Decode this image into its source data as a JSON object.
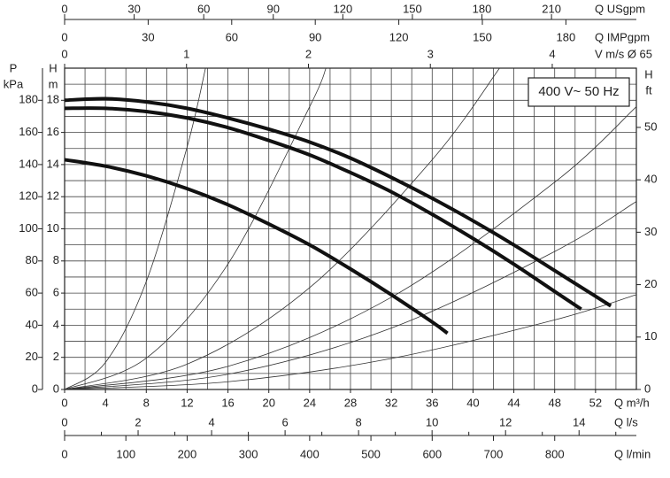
{
  "chart_data": {
    "type": "line",
    "annotation": "400 V~ 50 Hz",
    "xlabel": "Q m³/h",
    "ylabel": [
      "H",
      "m"
    ],
    "xlim": [
      0,
      56
    ],
    "xticks": [
      0,
      4,
      8,
      12,
      16,
      20,
      24,
      28,
      32,
      36,
      40,
      44,
      48,
      52
    ],
    "ylim": [
      0,
      20
    ],
    "yticks": [
      0,
      2,
      4,
      6,
      8,
      10,
      12,
      14,
      16,
      18
    ],
    "grid": true,
    "xgrid": [
      0,
      2,
      4,
      6,
      8,
      10,
      12,
      14,
      16,
      18,
      20,
      22,
      24,
      26,
      28,
      30,
      32,
      34,
      36,
      38,
      40,
      42,
      44,
      46,
      48,
      50,
      52,
      54,
      56
    ],
    "ygrid": [
      0,
      1,
      2,
      3,
      4,
      5,
      6,
      7,
      8,
      9,
      10,
      11,
      12,
      13,
      14,
      15,
      16,
      17,
      18,
      19,
      20
    ],
    "axes": [
      {
        "position": "left",
        "label": [
          "P",
          "kPa"
        ],
        "lim": [
          0,
          200
        ],
        "ticks": [
          0,
          20,
          40,
          60,
          80,
          100,
          120,
          140,
          160,
          180
        ]
      },
      {
        "position": "right",
        "label": [
          "H",
          "ft"
        ],
        "lim": [
          0,
          61.3
        ],
        "ticks": [
          0,
          10,
          20,
          30,
          40,
          50
        ]
      },
      {
        "position": "top",
        "label": [
          "Q USgpm"
        ],
        "lim": [
          0,
          246.6
        ],
        "ticks": [
          0,
          30,
          60,
          90,
          120,
          150,
          180,
          210
        ]
      },
      {
        "position": "top",
        "label": [
          "Q IMPgpm"
        ],
        "lim": [
          0,
          205.3
        ],
        "ticks": [
          0,
          30,
          60,
          90,
          120,
          150,
          180
        ]
      },
      {
        "position": "top",
        "label": [
          "V m/s Ø 65"
        ],
        "lim": [
          0,
          4.69
        ],
        "ticks": [
          0,
          1,
          2,
          3,
          4
        ]
      },
      {
        "position": "bottom",
        "label": [
          "Q l/s"
        ],
        "lim": [
          0,
          15.56
        ],
        "ticks": [
          0,
          2,
          4,
          6,
          8,
          10,
          12,
          14
        ],
        "minor_ticks": [
          1,
          3,
          5,
          7,
          9,
          11,
          13,
          15
        ]
      },
      {
        "position": "bottom",
        "label": [
          "Q l/min"
        ],
        "lim": [
          0,
          933.3
        ],
        "ticks": [
          0,
          100,
          200,
          300,
          400,
          500,
          600,
          700,
          800
        ]
      }
    ],
    "series": [
      {
        "color": "#111111",
        "width": 4,
        "x": [
          0,
          4,
          8,
          12,
          16,
          20,
          24,
          28,
          32,
          36,
          40,
          44,
          48,
          52,
          53.5
        ],
        "values": [
          18,
          18.1,
          17.9,
          17.5,
          16.9,
          16.2,
          15.4,
          14.4,
          13.2,
          11.9,
          10.5,
          9.0,
          7.4,
          5.8,
          5.2
        ]
      },
      {
        "color": "#111111",
        "width": 4,
        "x": [
          0,
          4,
          8,
          12,
          16,
          20,
          24,
          28,
          32,
          36,
          40,
          44,
          48,
          50.6
        ],
        "values": [
          17.5,
          17.5,
          17.3,
          16.9,
          16.3,
          15.5,
          14.6,
          13.5,
          12.3,
          10.9,
          9.4,
          7.8,
          6.1,
          5.0
        ]
      },
      {
        "color": "#111111",
        "width": 4,
        "x": [
          0,
          4,
          8,
          12,
          16,
          20,
          24,
          28,
          32,
          36,
          37.5
        ],
        "values": [
          14.3,
          13.9,
          13.3,
          12.5,
          11.5,
          10.3,
          9.0,
          7.5,
          5.9,
          4.2,
          3.5
        ]
      },
      {
        "color": "#333333",
        "width": 0.8,
        "x": [
          0,
          4,
          8,
          12,
          13.8
        ],
        "values": [
          0,
          1.68,
          6.72,
          15.1,
          20
        ]
      },
      {
        "color": "#333333",
        "width": 0.8,
        "x": [
          0,
          8,
          16,
          24,
          25.6
        ],
        "values": [
          0,
          1.95,
          7.81,
          17.6,
          20
        ]
      },
      {
        "color": "#333333",
        "width": 0.8,
        "x": [
          0,
          12,
          24,
          36,
          42.6
        ],
        "values": [
          0,
          1.58,
          6.34,
          14.3,
          20
        ]
      },
      {
        "color": "#333333",
        "width": 0.8,
        "x": [
          0,
          16,
          32,
          48,
          56
        ],
        "values": [
          0,
          1.44,
          5.74,
          12.9,
          17.6
        ]
      },
      {
        "color": "#333333",
        "width": 0.8,
        "x": [
          0,
          16,
          32,
          48,
          56
        ],
        "values": [
          0,
          0.95,
          3.82,
          8.59,
          11.7
        ]
      },
      {
        "color": "#333333",
        "width": 0.8,
        "x": [
          0,
          16,
          32,
          48,
          56
        ],
        "values": [
          0,
          0.48,
          1.93,
          4.33,
          5.9
        ]
      }
    ]
  }
}
